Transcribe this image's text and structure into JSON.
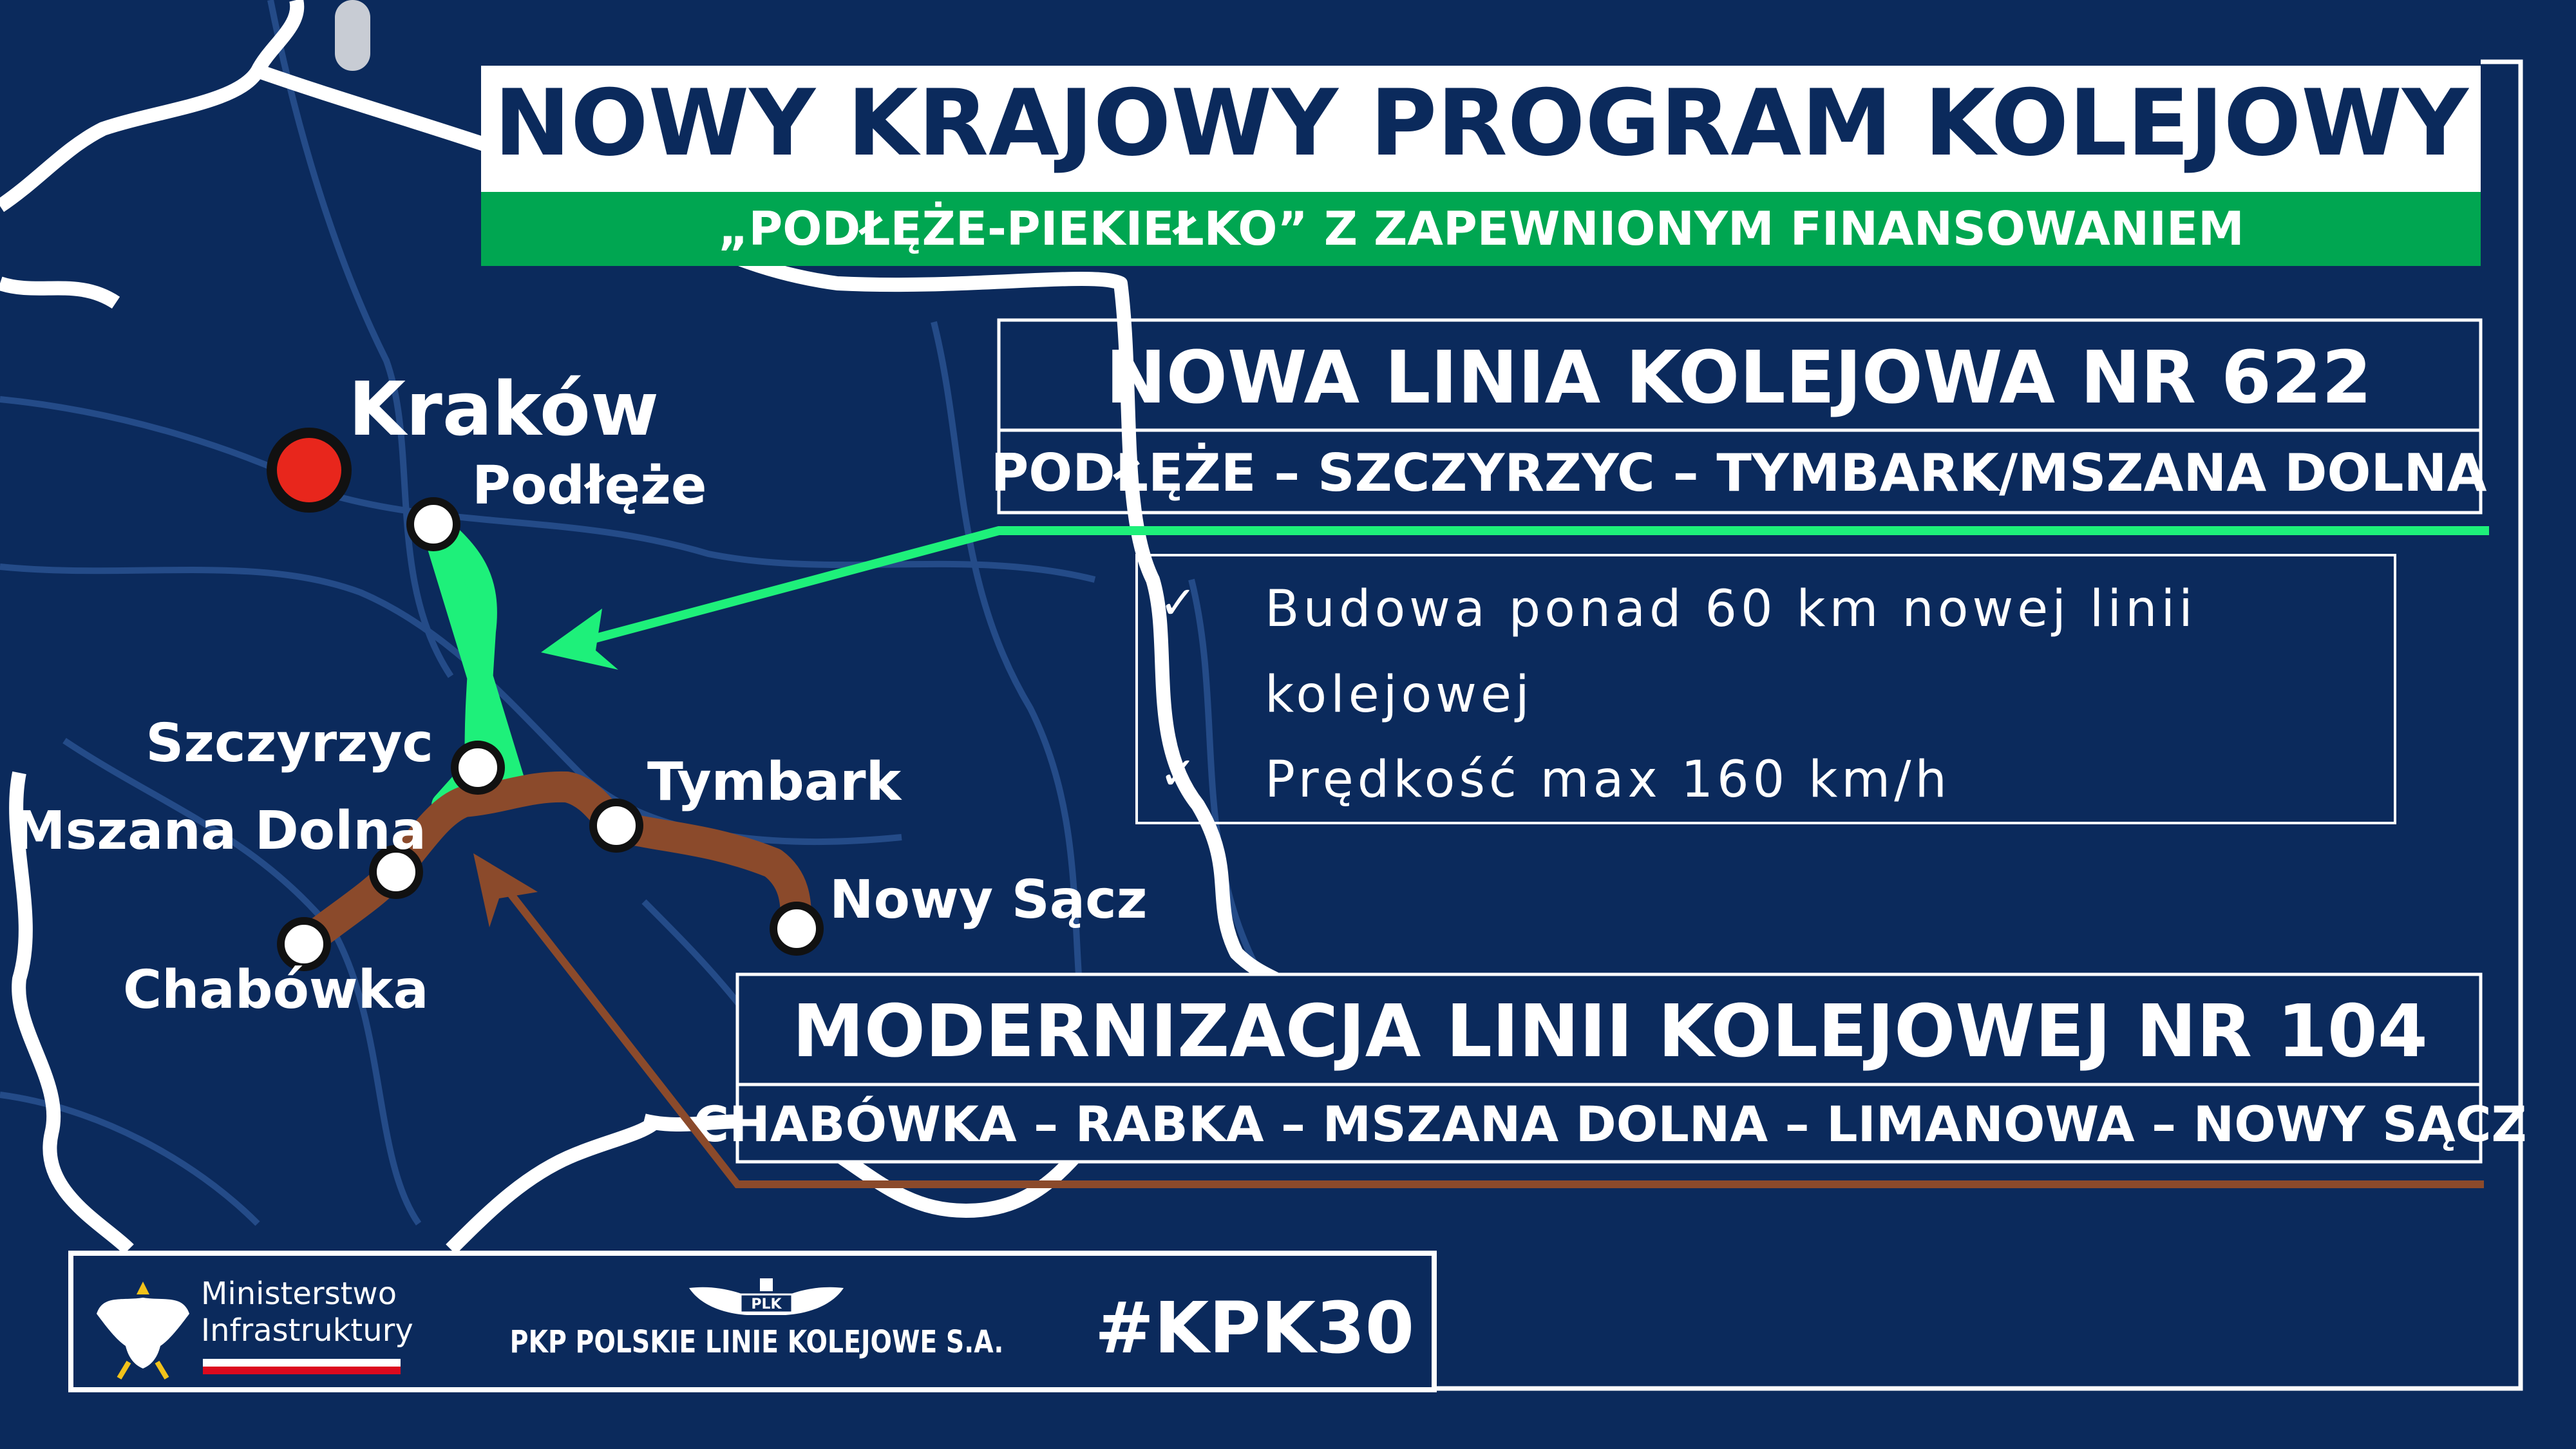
{
  "header": {
    "title": "NOWY KRAJOWY PROGRAM KOLEJOWY",
    "subtitle": "„PODŁĘŻE-PIEKIEŁKO” Z ZAPEWNIONYM FINANSOWANIEM"
  },
  "line622": {
    "title": "NOWA LINIA KOLEJOWA NR 622",
    "route": "PODŁĘŻE – SZCZYRZYC – TYMBARK/MSZANA DOLNA",
    "bullets": [
      {
        "line1": "Budowa ponad 60 km nowej linii",
        "line2": "kolejowej"
      },
      {
        "line1": "Prędkość max 160 km/h"
      }
    ],
    "color": "#1ef07a"
  },
  "line104": {
    "title": "MODERNIZACJA LINII KOLEJOWEJ NR 104",
    "route": "CHABÓWKA – RABKA – MSZANA DOLNA – LIMANOWA – NOWY SĄCZ",
    "color": "#8b4a2b"
  },
  "map": {
    "cities": {
      "krakow": "Kraków",
      "podleze": "Podłęże",
      "szczyrzyc": "Szczyrzyc",
      "mszana": "Mszana Dolna",
      "chabowka": "Chabówka",
      "tymbark": "Tymbark",
      "nowysacz": "Nowy Sącz"
    }
  },
  "footer": {
    "ministry_line1": "Ministerstwo",
    "ministry_line2": "Infrastruktury",
    "plk_logo_text": "PLK",
    "plk": "PKP POLSKIE LINIE KOLEJOWE S.A.",
    "hashtag": "#KPK30"
  },
  "colors": {
    "background": "#0b2a5c",
    "green": "#00a651",
    "navy": "#0b2a5c"
  }
}
